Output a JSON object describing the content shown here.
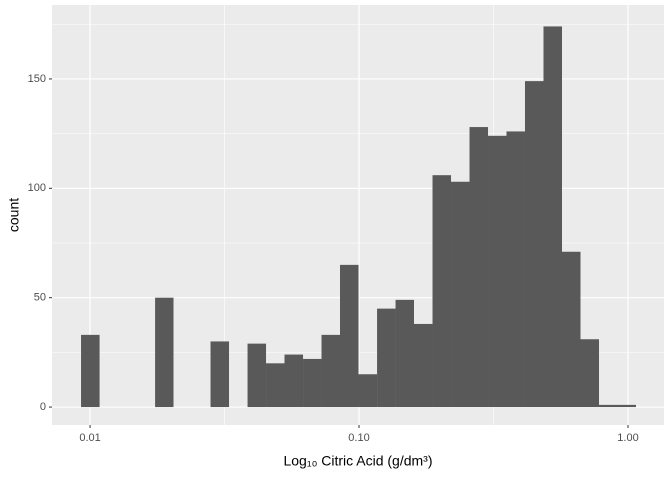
{
  "chart_data": {
    "type": "histogram",
    "x_label": "Log₁₀ Citric Acid (g/dm³)",
    "y_label": "count",
    "log_x": true,
    "grid": true,
    "color": "#595959",
    "bins": [
      0.009258,
      0.01085,
      0.01271,
      0.01489,
      0.01745,
      0.02043,
      0.02394,
      0.02805,
      0.03286,
      0.03851,
      0.04511,
      0.05284,
      0.06192,
      0.07254,
      0.08498,
      0.09956,
      0.1167,
      0.1367,
      0.1601,
      0.1876,
      0.2198,
      0.2575,
      0.3017,
      0.3534,
      0.414,
      0.4851,
      0.5684,
      0.6659,
      0.7802,
      0.914,
      1.071
    ],
    "values": [
      33,
      0,
      0,
      0,
      50,
      0,
      0,
      30,
      0,
      29,
      20,
      24,
      22,
      33,
      65,
      15,
      45,
      49,
      38,
      106,
      103,
      128,
      124,
      126,
      149,
      174,
      71,
      31,
      1,
      1
    ],
    "xlim": [
      0.00722,
      1.361
    ],
    "xticks": [
      {
        "value": 0.01,
        "label": "0.01"
      },
      {
        "value": 0.1,
        "label": "0.10"
      },
      {
        "value": 1,
        "label": "1.00"
      }
    ],
    "xminorticks": [
      0.03162,
      0.3162
    ],
    "ylim": [
      -8.2,
      183.8
    ],
    "yticks": [
      0,
      50,
      100,
      150
    ],
    "yminorticks": [
      25,
      75,
      125,
      175
    ]
  }
}
